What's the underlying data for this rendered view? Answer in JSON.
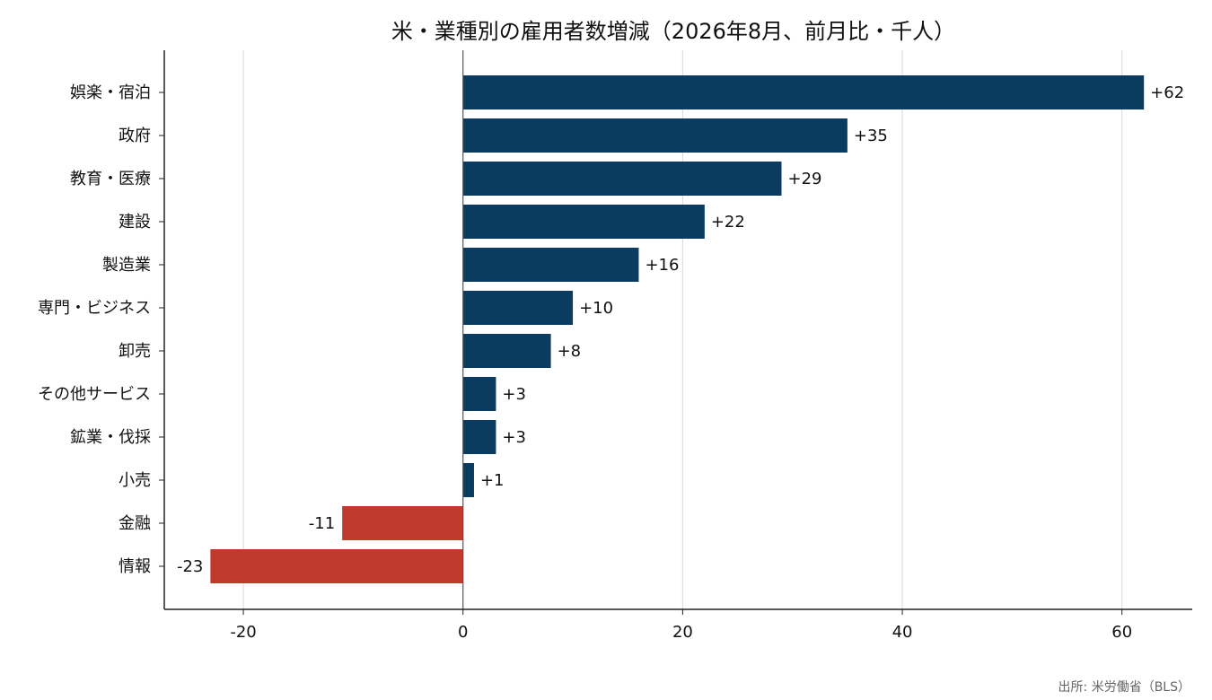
{
  "chart_data": {
    "type": "bar",
    "orientation": "horizontal",
    "title": "米・業種別の雇用者数増減（2026年8月、前月比・千人）",
    "source": "出所: 米労働省（BLS）",
    "categories": [
      "娯楽・宿泊",
      "政府",
      "教育・医療",
      "建設",
      "製造業",
      "専門・ビジネス",
      "卸売",
      "その他サービス",
      "鉱業・伐採",
      "小売",
      "金融",
      "情報"
    ],
    "values": [
      62,
      35,
      29,
      22,
      16,
      10,
      8,
      3,
      3,
      1,
      -11,
      -23
    ],
    "data_labels": [
      "+62",
      "+35",
      "+29",
      "+22",
      "+16",
      "+10",
      "+8",
      "+3",
      "+3",
      "+1",
      "-11",
      "-23"
    ],
    "xlim": [
      -27.2,
      66.4
    ],
    "x_ticks": [
      -20,
      0,
      20,
      40,
      60
    ],
    "x_tick_labels": [
      "-20",
      "0",
      "20",
      "40",
      "60"
    ],
    "grid": "vertical",
    "colors": {
      "positive": "#0b3b5f",
      "negative": "#c0392b",
      "axis": "#222222",
      "grid": "#d9d9d9",
      "zero_line": "#555555"
    }
  }
}
